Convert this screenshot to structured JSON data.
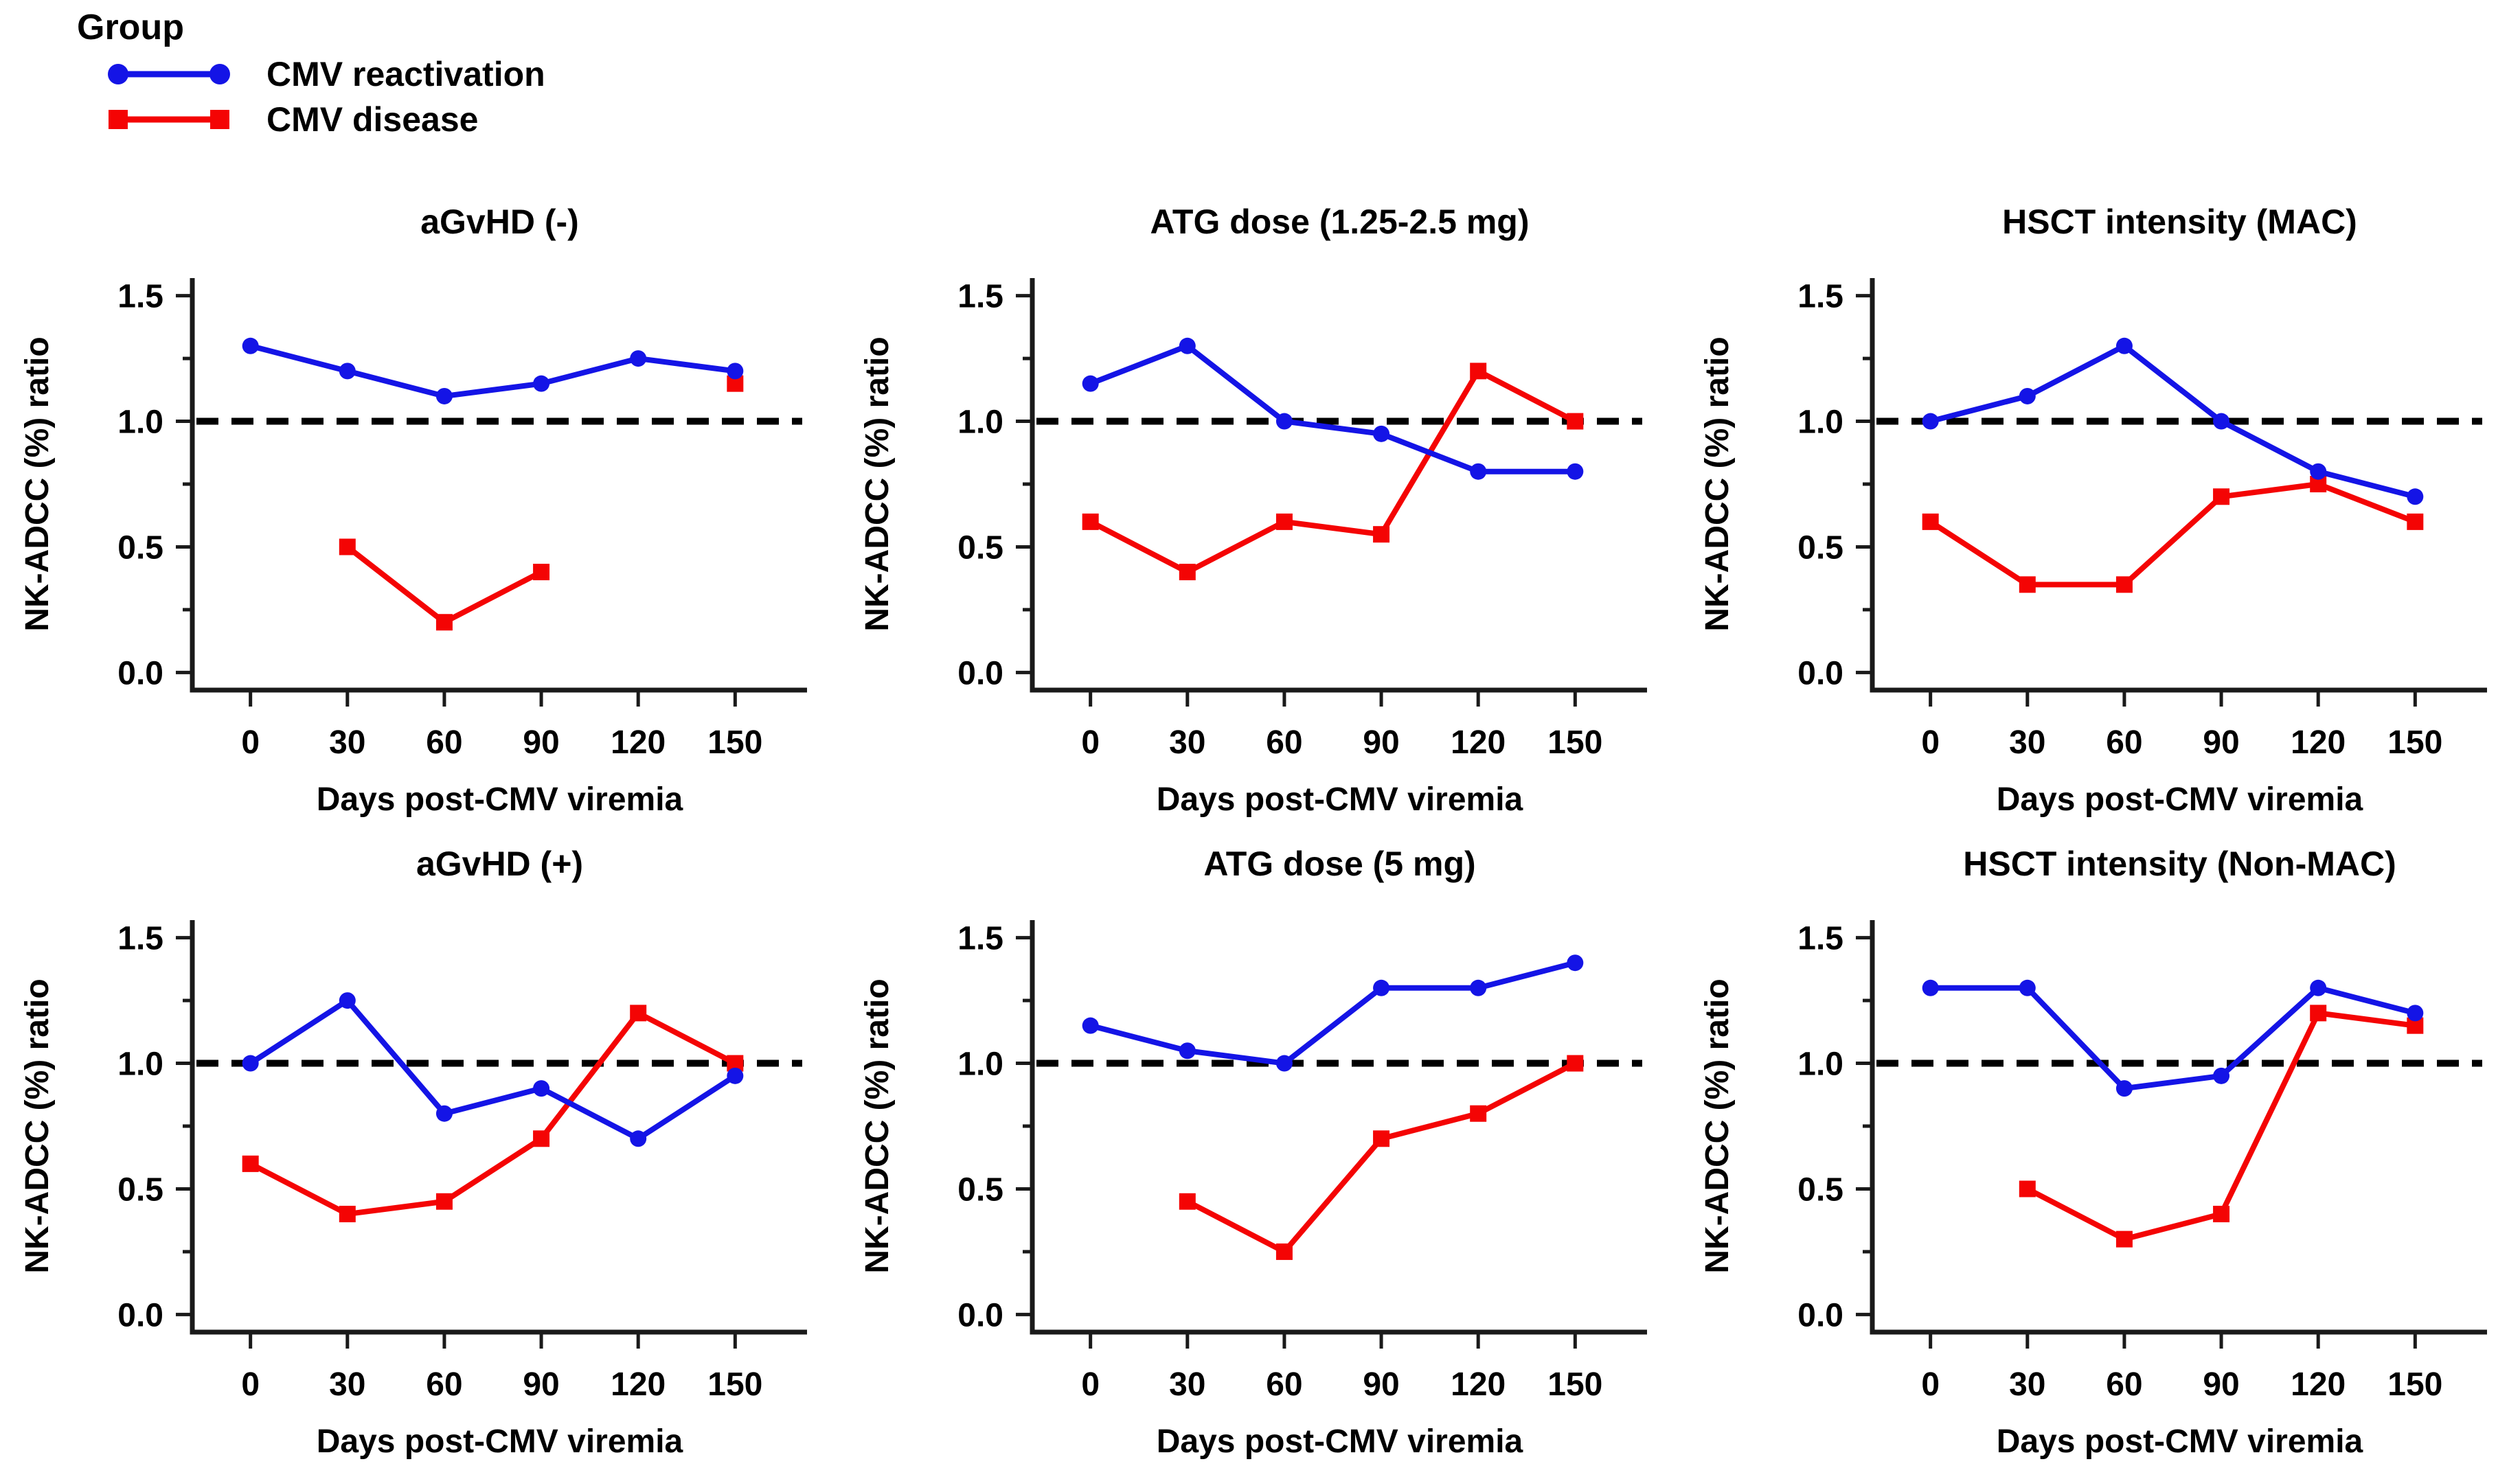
{
  "legend": {
    "title": "Group",
    "items": [
      {
        "label": "CMV reactivation",
        "color": "#1414e6",
        "marker": "circle"
      },
      {
        "label": "CMV disease",
        "color": "#f40404",
        "marker": "square"
      }
    ]
  },
  "chart_data": {
    "type": "line",
    "xlabel": "Days post-CMV viremia",
    "ylabel": "NK-ADCC (%) ratio",
    "x_ticks": [
      0,
      30,
      60,
      90,
      120,
      150
    ],
    "x_tick_labels": [
      "0",
      "30",
      "60",
      "90",
      "120",
      "150"
    ],
    "y_major_ticks": [
      0.0,
      0.5,
      1.0,
      1.5
    ],
    "y_tick_labels": [
      "0.0",
      "0.5",
      "1.0",
      "1.5"
    ],
    "y_minor_ticks": [
      0.25,
      0.75,
      1.25
    ],
    "ylim": [
      0.0,
      1.5
    ],
    "grid": false,
    "legend_position": "top-left",
    "reference_line": {
      "y": 1.0,
      "style": "dashed",
      "color": "#000000"
    },
    "panels": [
      {
        "title": "aGvHD (-)",
        "series": [
          {
            "name": "CMV reactivation",
            "points": [
              [
                0,
                1.3
              ],
              [
                30,
                1.2
              ],
              [
                60,
                1.1
              ],
              [
                90,
                1.15
              ],
              [
                120,
                1.25
              ],
              [
                150,
                1.2
              ]
            ]
          },
          {
            "name": "CMV disease",
            "points": [
              [
                30,
                0.5
              ],
              [
                60,
                0.2
              ],
              [
                90,
                0.4
              ]
            ],
            "isolated_points": [
              [
                150,
                1.15
              ]
            ]
          }
        ]
      },
      {
        "title": "ATG dose (1.25-2.5 mg)",
        "series": [
          {
            "name": "CMV reactivation",
            "points": [
              [
                0,
                1.15
              ],
              [
                30,
                1.3
              ],
              [
                60,
                1.0
              ],
              [
                90,
                0.95
              ],
              [
                120,
                0.8
              ],
              [
                150,
                0.8
              ]
            ]
          },
          {
            "name": "CMV disease",
            "points": [
              [
                0,
                0.6
              ],
              [
                30,
                0.4
              ],
              [
                60,
                0.6
              ],
              [
                90,
                0.55
              ],
              [
                120,
                1.2
              ],
              [
                150,
                1.0
              ]
            ]
          }
        ]
      },
      {
        "title": "HSCT intensity (MAC)",
        "series": [
          {
            "name": "CMV reactivation",
            "points": [
              [
                0,
                1.0
              ],
              [
                30,
                1.1
              ],
              [
                60,
                1.3
              ],
              [
                90,
                1.0
              ],
              [
                120,
                0.8
              ],
              [
                150,
                0.7
              ]
            ]
          },
          {
            "name": "CMV disease",
            "points": [
              [
                0,
                0.6
              ],
              [
                30,
                0.35
              ],
              [
                60,
                0.35
              ],
              [
                90,
                0.7
              ],
              [
                120,
                0.75
              ],
              [
                150,
                0.6
              ]
            ]
          }
        ]
      },
      {
        "title": "aGvHD (+)",
        "series": [
          {
            "name": "CMV reactivation",
            "points": [
              [
                0,
                1.0
              ],
              [
                30,
                1.25
              ],
              [
                60,
                0.8
              ],
              [
                90,
                0.9
              ],
              [
                120,
                0.7
              ],
              [
                150,
                0.95
              ]
            ]
          },
          {
            "name": "CMV disease",
            "points": [
              [
                0,
                0.6
              ],
              [
                30,
                0.4
              ],
              [
                60,
                0.45
              ],
              [
                90,
                0.7
              ],
              [
                120,
                1.2
              ],
              [
                150,
                1.0
              ]
            ]
          }
        ]
      },
      {
        "title": "ATG dose (5 mg)",
        "series": [
          {
            "name": "CMV reactivation",
            "points": [
              [
                0,
                1.15
              ],
              [
                30,
                1.05
              ],
              [
                60,
                1.0
              ],
              [
                90,
                1.3
              ],
              [
                120,
                1.3
              ],
              [
                150,
                1.4
              ]
            ]
          },
          {
            "name": "CMV disease",
            "points": [
              [
                30,
                0.45
              ],
              [
                60,
                0.25
              ],
              [
                90,
                0.7
              ],
              [
                120,
                0.8
              ],
              [
                150,
                1.0
              ]
            ]
          }
        ]
      },
      {
        "title": "HSCT intensity (Non-MAC)",
        "series": [
          {
            "name": "CMV reactivation",
            "points": [
              [
                0,
                1.3
              ],
              [
                30,
                1.3
              ],
              [
                60,
                0.9
              ],
              [
                90,
                0.95
              ],
              [
                120,
                1.3
              ],
              [
                150,
                1.2
              ]
            ]
          },
          {
            "name": "CMV disease",
            "points": [
              [
                30,
                0.5
              ],
              [
                60,
                0.3
              ],
              [
                90,
                0.4
              ],
              [
                120,
                1.2
              ],
              [
                150,
                1.15
              ]
            ]
          }
        ]
      }
    ]
  }
}
